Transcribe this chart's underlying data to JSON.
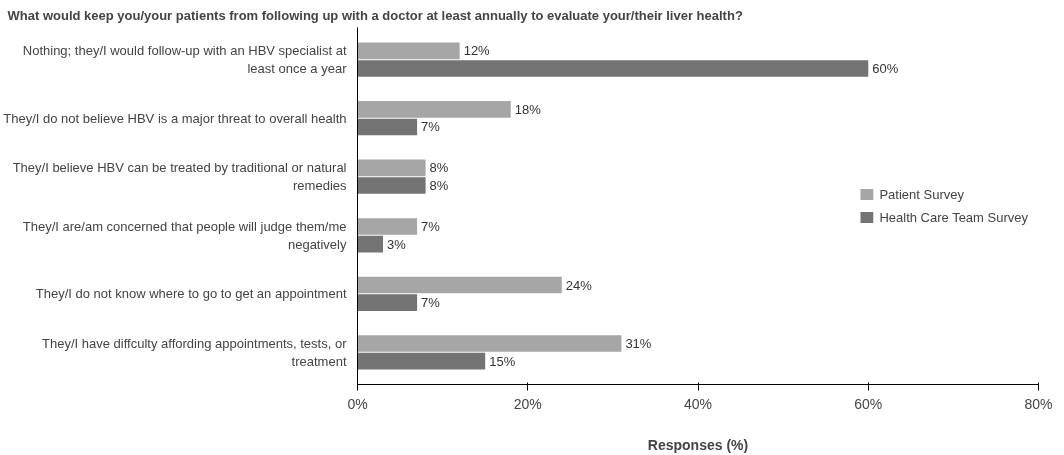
{
  "chart_data": {
    "type": "bar",
    "orientation": "horizontal",
    "title": "What would keep you/your patients from following up with a doctor at least annually to evaluate your/their liver health?",
    "xlabel": "Responses (%)",
    "categories": [
      "Nothing; they/I would follow-up with an HBV specialist at least once a year",
      "They/I do not believe HBV is a major threat to overall health",
      "They/I believe HBV can be treated by traditional or natural remedies",
      "They/I are/am concerned that people will judge them/me negatively",
      "They/I do not know where to go to get an appointment",
      "They/I have diffculty affording appointments, tests, or treatment"
    ],
    "series": [
      {
        "name": "Patient Survey",
        "color": "#a6a6a6",
        "values": [
          12,
          18,
          8,
          7,
          24,
          31
        ],
        "value_labels": [
          "12%",
          "18%",
          "8%",
          "7%",
          "24%",
          "31%"
        ]
      },
      {
        "name": "Health Care Team Survey",
        "color": "#737373",
        "values": [
          60,
          7,
          8,
          3,
          7,
          15
        ],
        "value_labels": [
          "60%",
          "7%",
          "8%",
          "3%",
          "7%",
          "15%"
        ]
      }
    ],
    "xlim": [
      0,
      80
    ],
    "xticks": [
      {
        "value": 0,
        "label": "0%"
      },
      {
        "value": 20,
        "label": "20%"
      },
      {
        "value": 40,
        "label": "40%"
      },
      {
        "value": 60,
        "label": "60%"
      },
      {
        "value": 80,
        "label": "80%"
      }
    ],
    "grid": false,
    "legend": "right"
  }
}
